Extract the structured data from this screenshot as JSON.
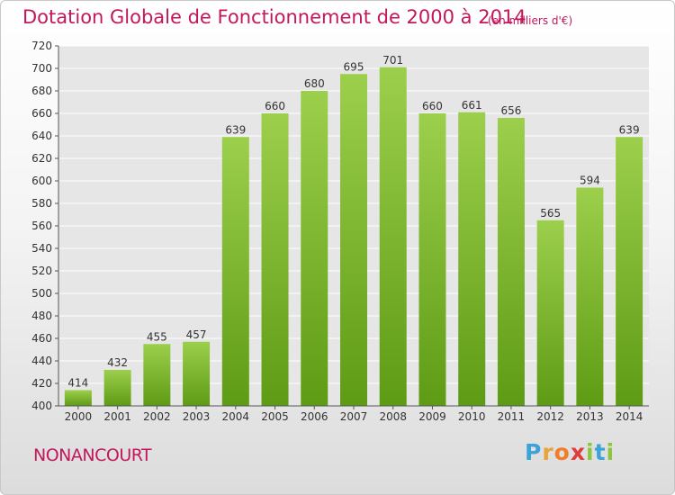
{
  "header": {
    "title": "Dotation Globale de Fonctionnement de 2000 à 2014",
    "unit": "(en milliers d'€)"
  },
  "footer": {
    "commune": "NONANCOURT",
    "logo": "Proxiti"
  },
  "chart_data": {
    "type": "bar",
    "title": "Dotation Globale de Fonctionnement de 2000 à 2014",
    "subtitle": "(en milliers d'€)",
    "xlabel": "",
    "ylabel": "",
    "categories": [
      "2000",
      "2001",
      "2002",
      "2003",
      "2004",
      "2005",
      "2006",
      "2007",
      "2008",
      "2009",
      "2010",
      "2011",
      "2012",
      "2013",
      "2014"
    ],
    "values": [
      414,
      432,
      455,
      457,
      639,
      660,
      680,
      695,
      701,
      660,
      661,
      656,
      565,
      594,
      639
    ],
    "ylim": [
      400,
      720
    ],
    "yticks": [
      400,
      420,
      440,
      460,
      480,
      500,
      520,
      540,
      560,
      580,
      600,
      620,
      640,
      660,
      680,
      700,
      720
    ],
    "grid": true,
    "colors": {
      "bar_top": "#9ccf4c",
      "bar_bottom": "#5e9b14",
      "grid": "#ffffff",
      "title": "#c2185b"
    }
  }
}
